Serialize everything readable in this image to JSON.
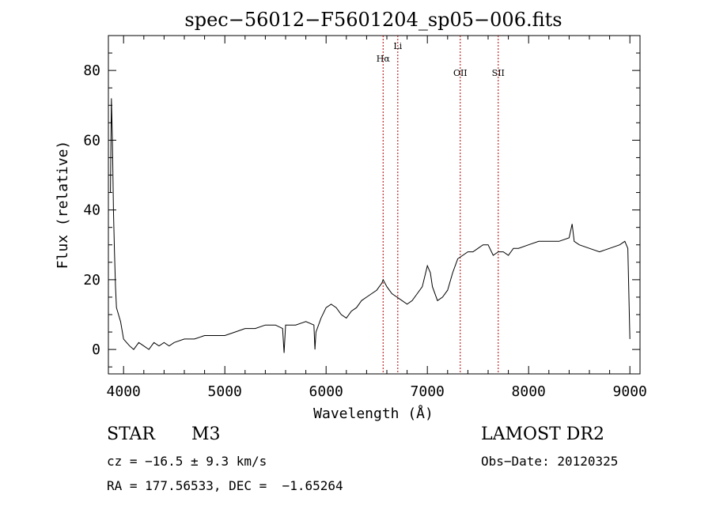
{
  "chart_data": {
    "type": "line",
    "title": "spec−56012−F5601204_sp05−006.fits",
    "xlabel": "Wavelength (Å)",
    "ylabel": "Flux (relative)",
    "xlim": [
      3850,
      9100
    ],
    "ylim": [
      -7,
      90
    ],
    "xticks": [
      4000,
      5000,
      6000,
      7000,
      8000,
      9000
    ],
    "yticks": [
      0,
      20,
      40,
      60,
      80
    ],
    "grid": false,
    "series": [
      {
        "x": [
          3870,
          3880,
          3890,
          3900,
          3910,
          3920,
          3930,
          3950,
          3970,
          4000,
          4030,
          4060,
          4100,
          4150,
          4200,
          4250,
          4300,
          4350,
          4400,
          4450,
          4500,
          4600,
          4700,
          4800,
          4900,
          5000,
          5100,
          5200,
          5300,
          5400,
          5500,
          5570,
          5585,
          5600,
          5700,
          5800,
          5880,
          5890,
          5900,
          5950,
          6000,
          6050,
          6100,
          6150,
          6200,
          6250,
          6300,
          6350,
          6400,
          6450,
          6500,
          6550,
          6563,
          6600,
          6650,
          6700,
          6750,
          6800,
          6850,
          6900,
          6950,
          7000,
          7030,
          7050,
          7100,
          7150,
          7200,
          7250,
          7300,
          7350,
          7400,
          7450,
          7500,
          7550,
          7600,
          7650,
          7700,
          7750,
          7800,
          7850,
          7900,
          8000,
          8100,
          8200,
          8300,
          8400,
          8430,
          8450,
          8500,
          8600,
          8700,
          8800,
          8900,
          8950,
          8980,
          9000
        ],
        "y": [
          45,
          72,
          60,
          40,
          28,
          18,
          12,
          10,
          8,
          3,
          2,
          1,
          0,
          2,
          1,
          0,
          2,
          1,
          2,
          1,
          2,
          3,
          3,
          4,
          4,
          4,
          5,
          6,
          6,
          7,
          7,
          6,
          -1,
          7,
          7,
          8,
          7,
          0,
          5,
          9,
          12,
          13,
          12,
          10,
          9,
          11,
          12,
          14,
          15,
          16,
          17,
          19,
          20,
          18,
          16,
          15,
          14,
          13,
          14,
          16,
          18,
          24,
          22,
          18,
          14,
          15,
          17,
          22,
          26,
          27,
          28,
          28,
          29,
          30,
          30,
          27,
          28,
          28,
          27,
          29,
          29,
          30,
          31,
          31,
          31,
          32,
          36,
          31,
          30,
          29,
          28,
          29,
          30,
          31,
          29,
          3
        ]
      }
    ],
    "lines": [
      {
        "label": "Hα",
        "x": 6563
      },
      {
        "label": "Li",
        "x": 6708
      },
      {
        "label": "OII",
        "x": 7325
      },
      {
        "label": "SII",
        "x": 7700
      }
    ]
  },
  "info": {
    "object_class": "STAR",
    "subclass": "M3",
    "survey": "LAMOST DR2",
    "cz": "cz = −16.5 ± 9.3 km/s",
    "obs_date": "Obs−Date: 20120325",
    "coords": "RA = 177.56533, DEC =  −1.65264"
  }
}
